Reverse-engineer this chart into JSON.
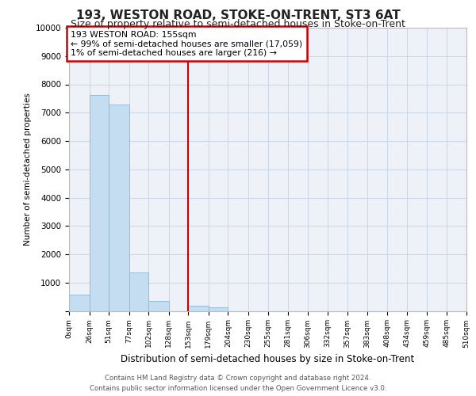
{
  "title": "193, WESTON ROAD, STOKE-ON-TRENT, ST3 6AT",
  "subtitle": "Size of property relative to semi-detached houses in Stoke-on-Trent",
  "xlabel": "Distribution of semi-detached houses by size in Stoke-on-Trent",
  "ylabel": "Number of semi-detached properties",
  "footer_line1": "Contains HM Land Registry data © Crown copyright and database right 2024.",
  "footer_line2": "Contains public sector information licensed under the Open Government Licence v3.0.",
  "annotation_line1": "193 WESTON ROAD: 155sqm",
  "annotation_line2": "← 99% of semi-detached houses are smaller (17,059)",
  "annotation_line3": "1% of semi-detached houses are larger (216) →",
  "bar_edges": [
    0,
    26,
    51,
    77,
    102,
    128,
    153,
    179,
    204,
    230,
    255,
    281,
    306,
    332,
    357,
    383,
    408,
    434,
    459,
    485,
    510
  ],
  "bar_heights": [
    570,
    7620,
    7300,
    1350,
    350,
    0,
    170,
    130,
    0,
    0,
    0,
    0,
    0,
    0,
    0,
    0,
    0,
    0,
    0,
    0
  ],
  "bar_color": "#c5ddf0",
  "bar_edge_color": "#88b8d8",
  "vline_color": "#cc0000",
  "vline_x": 153,
  "annotation_box_color": "#cc0000",
  "ylim": [
    0,
    10000
  ],
  "yticks": [
    0,
    1000,
    2000,
    3000,
    4000,
    5000,
    6000,
    7000,
    8000,
    9000,
    10000
  ],
  "grid_color": "#ccd8e8",
  "bg_color": "#eef2f8",
  "title_fontsize": 11,
  "subtitle_fontsize": 9
}
